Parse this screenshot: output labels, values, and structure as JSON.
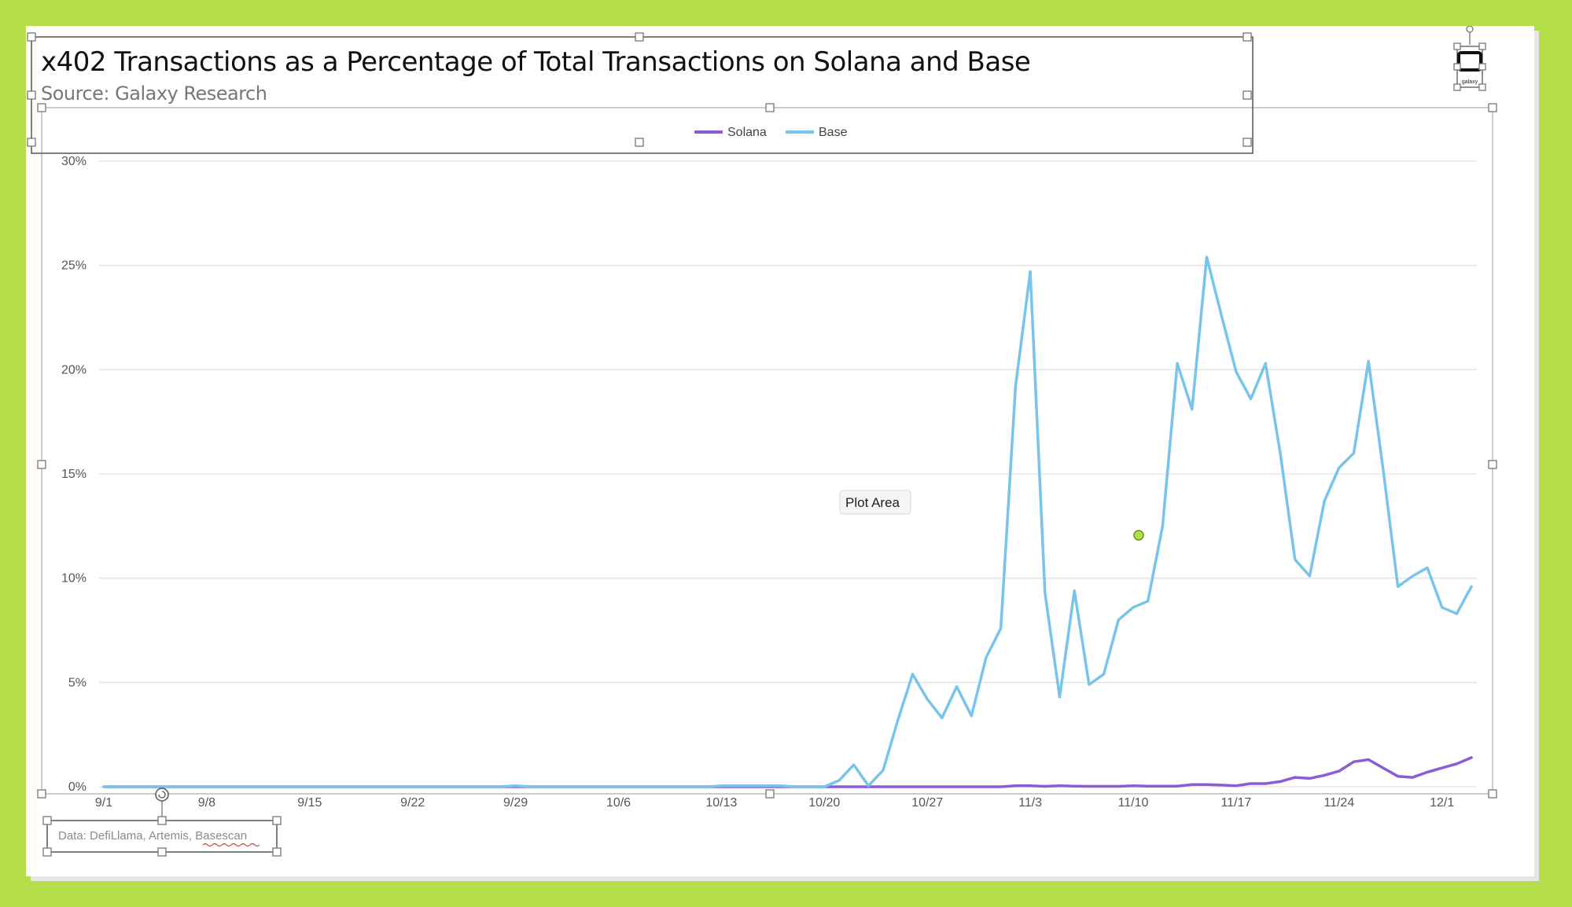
{
  "chart_data": {
    "type": "line",
    "title": "x402 Transactions as a Percentage of Total Transactions on Solana and Base",
    "subtitle": "Source: Galaxy Research",
    "source_note": "Data: DefiLlama, Artemis, Basescan",
    "legend_position": "top-center",
    "grid": true,
    "ylim": [
      0,
      30
    ],
    "yticks": [
      0,
      5,
      10,
      15,
      20,
      25,
      30
    ],
    "ytick_labels": [
      "0%",
      "5%",
      "10%",
      "15%",
      "20%",
      "25%",
      "30%"
    ],
    "x_start_label": "9/1",
    "xtick_labels": [
      "9/1",
      "9/8",
      "9/15",
      "9/22",
      "9/29",
      "10/6",
      "10/13",
      "10/20",
      "10/27",
      "11/3",
      "11/10",
      "11/17",
      "11/24",
      "12/1"
    ],
    "x": [
      "9/1",
      "9/2",
      "9/3",
      "9/4",
      "9/5",
      "9/6",
      "9/7",
      "9/8",
      "9/9",
      "9/10",
      "9/11",
      "9/12",
      "9/13",
      "9/14",
      "9/15",
      "9/16",
      "9/17",
      "9/18",
      "9/19",
      "9/20",
      "9/21",
      "9/22",
      "9/23",
      "9/24",
      "9/25",
      "9/26",
      "9/27",
      "9/28",
      "9/29",
      "9/30",
      "10/1",
      "10/2",
      "10/3",
      "10/4",
      "10/5",
      "10/6",
      "10/7",
      "10/8",
      "10/9",
      "10/10",
      "10/11",
      "10/12",
      "10/13",
      "10/14",
      "10/15",
      "10/16",
      "10/17",
      "10/18",
      "10/19",
      "10/20",
      "10/21",
      "10/22",
      "10/23",
      "10/24",
      "10/25",
      "10/26",
      "10/27",
      "10/28",
      "10/29",
      "10/30",
      "10/31",
      "11/1",
      "11/2",
      "11/3",
      "11/4",
      "11/5",
      "11/6",
      "11/7",
      "11/8",
      "11/9",
      "11/10",
      "11/11",
      "11/12",
      "11/13",
      "11/14",
      "11/15",
      "11/16",
      "11/17",
      "11/18",
      "11/19",
      "11/20",
      "11/21",
      "11/22",
      "11/23",
      "11/24",
      "11/25",
      "11/26",
      "11/27",
      "11/28",
      "11/29",
      "11/30",
      "12/1",
      "12/2",
      "12/3"
    ],
    "series": [
      {
        "name": "Solana",
        "color": "#8c5cd6",
        "values": [
          0,
          0,
          0,
          0,
          0,
          0,
          0,
          0,
          0,
          0,
          0,
          0,
          0,
          0,
          0,
          0,
          0,
          0,
          0,
          0,
          0,
          0,
          0,
          0,
          0,
          0,
          0,
          0,
          0,
          0,
          0,
          0,
          0,
          0,
          0,
          0,
          0,
          0,
          0,
          0,
          0,
          0,
          0,
          0,
          0,
          0,
          0,
          0,
          0,
          0,
          0,
          0,
          0,
          0,
          0,
          0,
          0,
          0,
          0,
          0,
          0,
          0,
          0.05,
          0.05,
          0.02,
          0.05,
          0.03,
          0.02,
          0.02,
          0.02,
          0.05,
          0.03,
          0.03,
          0.03,
          0.1,
          0.1,
          0.08,
          0.05,
          0.15,
          0.15,
          0.25,
          0.45,
          0.4,
          0.55,
          0.75,
          1.2,
          1.3,
          0.9,
          0.5,
          0.45,
          0.7,
          0.9,
          1.1,
          1.4
        ]
      },
      {
        "name": "Base",
        "color": "#79c4ea",
        "values": [
          0,
          0,
          0,
          0,
          0,
          0,
          0,
          0,
          0,
          0,
          0,
          0,
          0,
          0,
          0,
          0,
          0,
          0,
          0,
          0,
          0,
          0,
          0,
          0,
          0,
          0,
          0,
          0,
          0.05,
          0,
          0,
          0,
          0,
          0,
          0,
          0,
          0,
          0,
          0,
          0,
          0,
          0,
          0.05,
          0.05,
          0.05,
          0.05,
          0.05,
          0,
          0,
          0,
          0.3,
          1.05,
          0.05,
          0.8,
          3.2,
          5.4,
          4.2,
          3.3,
          4.8,
          3.4,
          6.2,
          7.6,
          19.2,
          24.7,
          9.3,
          4.3,
          9.4,
          4.9,
          5.4,
          8.0,
          8.6,
          8.9,
          12.5,
          20.3,
          18.1,
          25.4,
          22.6,
          19.9,
          18.6,
          20.3,
          16.0,
          10.9,
          10.1,
          13.7,
          15.3,
          16.0,
          20.4,
          15.2,
          9.6,
          10.1,
          10.5,
          8.6,
          8.3,
          9.6
        ]
      }
    ]
  },
  "tooltip": "Plot Area",
  "logo_mark": "galaxy"
}
